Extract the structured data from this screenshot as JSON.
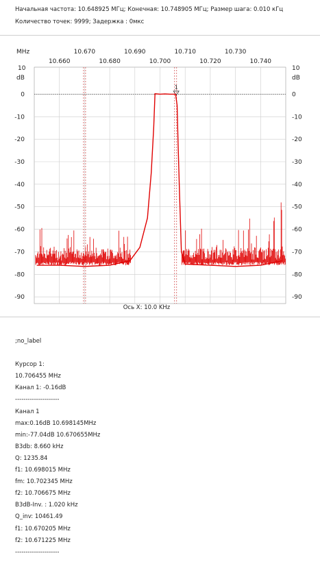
{
  "header": {
    "line1": "Начальная частота: 10.648925 МГц; Конечная: 10.748905 МГц; Размер шага: 0.010 кГц",
    "line2": "Количество точек: 9999; Задержка :   0мкс"
  },
  "chart_data": {
    "type": "line",
    "x_unit_label": "MHz",
    "y_unit_label_top": "10",
    "y_unit_label_unit": "dB",
    "xlim": [
      10.65,
      10.75
    ],
    "ylim": [
      -93,
      12
    ],
    "x_ticks_upper": [
      "10.670",
      "10.690",
      "10.710",
      "10.730"
    ],
    "x_ticks_upper_values": [
      10.67,
      10.69,
      10.71,
      10.73
    ],
    "x_ticks_lower": [
      "10.660",
      "10.680",
      "10.700",
      "10.720",
      "10.740"
    ],
    "x_ticks_lower_values": [
      10.66,
      10.68,
      10.7,
      10.72,
      10.74
    ],
    "y_ticks": [
      "0",
      "-10",
      "-20",
      "-30",
      "-40",
      "-50",
      "-60",
      "-70",
      "-80",
      "-90"
    ],
    "y_tick_values": [
      0,
      -10,
      -20,
      -30,
      -40,
      -50,
      -60,
      -70,
      -80,
      -90
    ],
    "grid": true,
    "xlabel": "Ось X: 10.0 KHz",
    "series": [
      {
        "color": "#e00000",
        "x": [
          10.651,
          10.66,
          10.67,
          10.68,
          10.688,
          10.692,
          10.695,
          10.6965,
          10.6975,
          10.698,
          10.7,
          10.702,
          10.704,
          10.7062,
          10.7068,
          10.7072,
          10.7078,
          10.7085,
          10.71,
          10.72,
          10.73,
          10.74,
          10.7485
        ],
        "y": [
          -76,
          -76,
          -76.5,
          -76,
          -74,
          -68,
          -55,
          -35,
          -15,
          0.2,
          0,
          0.1,
          0,
          0,
          -5,
          -22,
          -45,
          -70,
          -75.5,
          -76,
          -76.5,
          -76,
          -74
        ]
      }
    ],
    "reference_line_y": 0,
    "markers": [
      {
        "label": "1",
        "x": 10.70645,
        "y": -0.16
      }
    ],
    "vertical_markers_x": [
      10.67,
      10.7062
    ]
  },
  "report": {
    "lines": [
      ";no_label",
      "",
      "Курсор 1:",
      "10.706455 MHz",
      "Канал 1:  -0.16dB",
      "---------------------",
      "Канал 1",
      "max:0.16dB 10.698145MHz",
      "min:-77.04dB 10.670655MHz",
      "B3db: 8.660 kHz",
      "Q: 1235.84",
      "f1: 10.698015 MHz",
      "fm: 10.702345 MHz",
      "f2: 10.706675 MHz",
      "B3dB-Inv. : 1.020 kHz",
      "Q_inv: 10461.49",
      "f1: 10.670205 MHz",
      "f2: 10.671225 MHz",
      "---------------------"
    ]
  }
}
